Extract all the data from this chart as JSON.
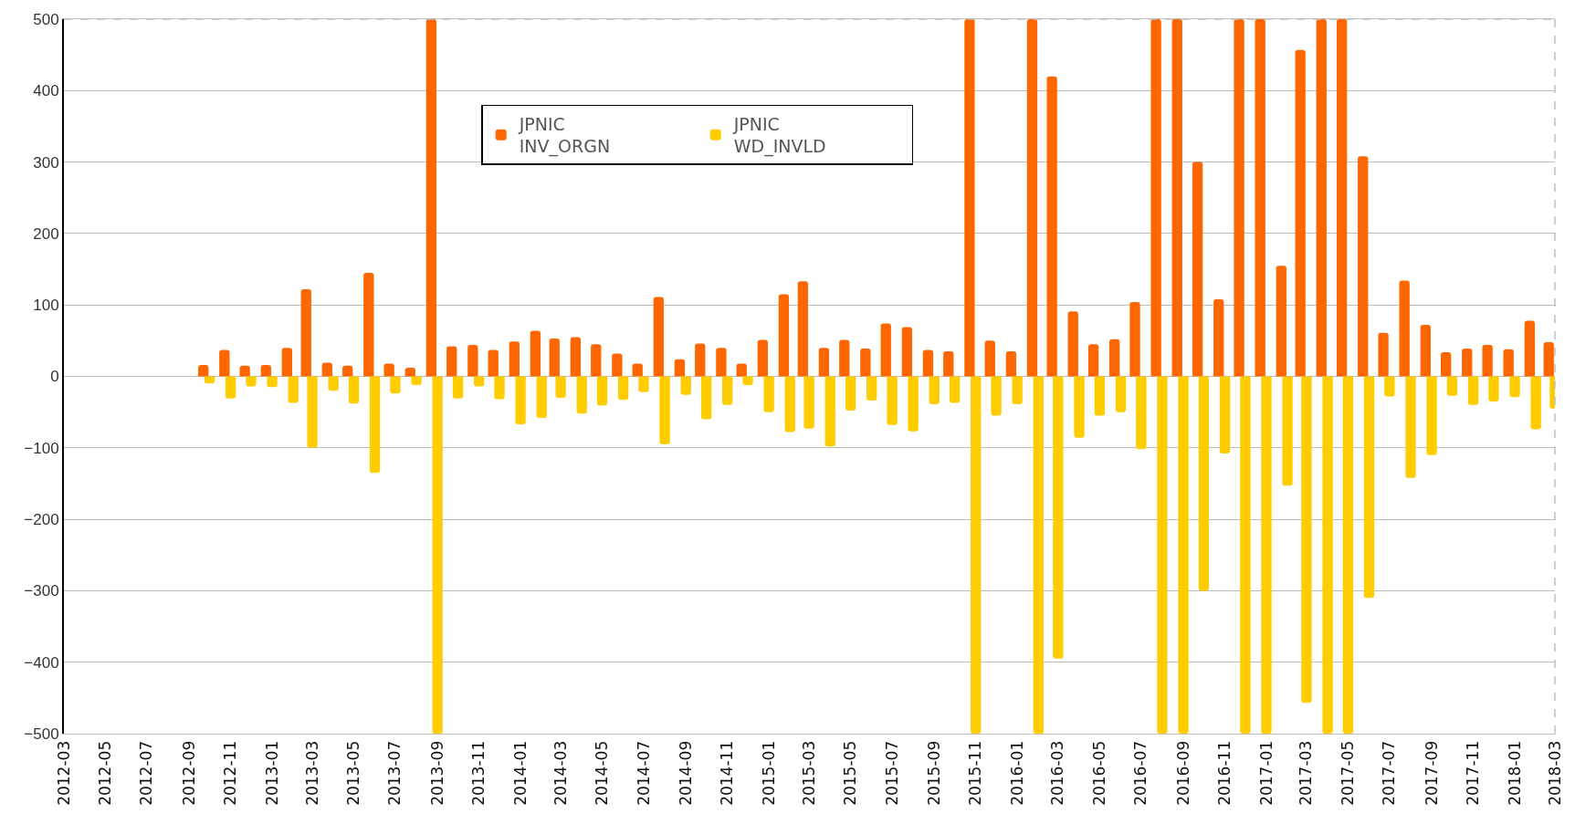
{
  "chart_data": {
    "type": "bar",
    "x": [
      "2012-10",
      "2012-11",
      "2012-12",
      "2013-01",
      "2013-02",
      "2013-03",
      "2013-04",
      "2013-05",
      "2013-06",
      "2013-07",
      "2013-08",
      "2013-09",
      "2013-10",
      "2013-11",
      "2013-12",
      "2014-01",
      "2014-02",
      "2014-03",
      "2014-04",
      "2014-05",
      "2014-06",
      "2014-07",
      "2014-08",
      "2014-09",
      "2014-10",
      "2014-11",
      "2014-12",
      "2015-01",
      "2015-02",
      "2015-03",
      "2015-04",
      "2015-05",
      "2015-06",
      "2015-07",
      "2015-08",
      "2015-09",
      "2015-10",
      "2015-11",
      "2015-12",
      "2016-01",
      "2016-02",
      "2016-03",
      "2016-04",
      "2016-05",
      "2016-06",
      "2016-07",
      "2016-08",
      "2016-09",
      "2016-10",
      "2016-11",
      "2016-12",
      "2017-01",
      "2017-02",
      "2017-03",
      "2017-04",
      "2017-05",
      "2017-06",
      "2017-07",
      "2017-08",
      "2017-09",
      "2017-10",
      "2017-11",
      "2017-12",
      "2018-01",
      "2018-02",
      "2018-03"
    ],
    "series": [
      {
        "name": "JPNIC\nINV_ORGN",
        "color": "#ff6600",
        "values": [
          16,
          37,
          15,
          16,
          40,
          122,
          19,
          15,
          145,
          18,
          12,
          500,
          42,
          44,
          37,
          49,
          64,
          53,
          55,
          45,
          32,
          18,
          111,
          24,
          46,
          40,
          18,
          51,
          115,
          133,
          40,
          51,
          39,
          74,
          69,
          37,
          35,
          500,
          50,
          35,
          500,
          420,
          91,
          45,
          52,
          104,
          500,
          500,
          300,
          108,
          500,
          500,
          155,
          457,
          500,
          500,
          308,
          61,
          134,
          72,
          34,
          39,
          44,
          38,
          78,
          48
        ]
      },
      {
        "name": "JPNIC\nWD_INVLD",
        "color": "#ffcc00",
        "values": [
          -10,
          -31,
          -14,
          -15,
          -37,
          -100,
          -20,
          -38,
          -135,
          -24,
          -12,
          -500,
          -31,
          -14,
          -32,
          -67,
          -58,
          -30,
          -52,
          -41,
          -33,
          -22,
          -95,
          -26,
          -60,
          -40,
          -12,
          -50,
          -78,
          -73,
          -98,
          -48,
          -34,
          -68,
          -77,
          -39,
          -37,
          -500,
          -55,
          -39,
          -500,
          -395,
          -86,
          -55,
          -50,
          -102,
          -500,
          -500,
          -300,
          -108,
          -500,
          -500,
          -153,
          -457,
          -500,
          -500,
          -310,
          -28,
          -142,
          -110,
          -27,
          -40,
          -35,
          -29,
          -74,
          -45
        ]
      }
    ],
    "xlim": [
      "2012-03",
      "2018-03"
    ],
    "xticks": [
      "2012-03",
      "2012-05",
      "2012-07",
      "2012-09",
      "2012-11",
      "2013-01",
      "2013-03",
      "2013-05",
      "2013-07",
      "2013-09",
      "2013-11",
      "2014-01",
      "2014-03",
      "2014-05",
      "2014-07",
      "2014-09",
      "2014-11",
      "2015-01",
      "2015-03",
      "2015-05",
      "2015-07",
      "2015-09",
      "2015-11",
      "2016-01",
      "2016-03",
      "2016-05",
      "2016-07",
      "2016-09",
      "2016-11",
      "2017-01",
      "2017-03",
      "2017-05",
      "2017-07",
      "2017-09",
      "2017-11",
      "2018-01",
      "2018-03"
    ],
    "ylim": [
      -500,
      500
    ],
    "yticks": [
      -500,
      -400,
      -300,
      -200,
      -100,
      0,
      100,
      200,
      300,
      400,
      500
    ],
    "grid": "y",
    "legend": "top"
  }
}
